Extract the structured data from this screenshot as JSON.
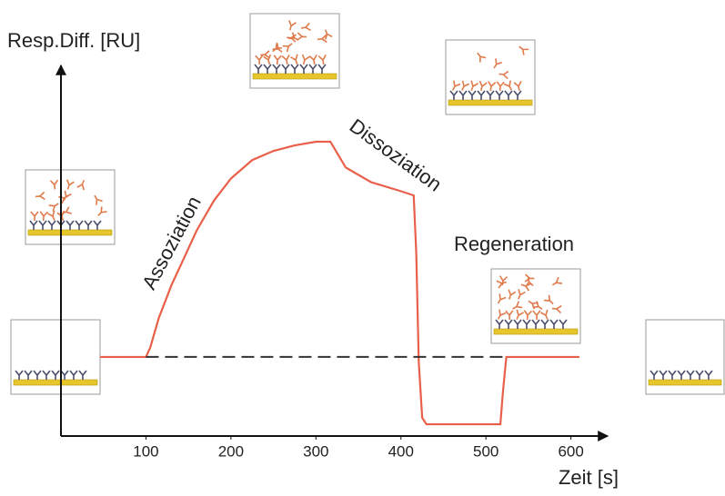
{
  "chart_data": {
    "type": "line",
    "y_label": "Resp.Diff. [RU]",
    "x_label": "Zeit [s]",
    "annotations": [
      "Assoziation",
      "Dissoziation",
      "Regeneration"
    ],
    "xlim": [
      0,
      640
    ],
    "xticks": [
      100,
      200,
      300,
      400,
      500,
      600
    ],
    "ylim": [
      0,
      100
    ],
    "series": [
      {
        "color": "#e8604a",
        "x": [
          46,
          100,
          105,
          115,
          130,
          142,
          160,
          180,
          200,
          225,
          250,
          275,
          300,
          317,
          335,
          365,
          398,
          415,
          418,
          421,
          425,
          430,
          517,
          520,
          524,
          530,
          610
        ],
        "values": [
          21.5,
          21.5,
          24,
          32,
          41,
          47,
          56,
          64,
          70,
          75,
          77.5,
          79,
          80,
          80,
          73,
          69,
          66.7,
          65.4,
          50,
          20,
          5,
          3.2,
          3.2,
          12,
          21.5,
          21.5,
          21.5
        ]
      },
      {
        "color": "#333333",
        "dashed": true,
        "x": [
          100,
          523
        ],
        "values": [
          21.5,
          21.5
        ]
      }
    ]
  }
}
